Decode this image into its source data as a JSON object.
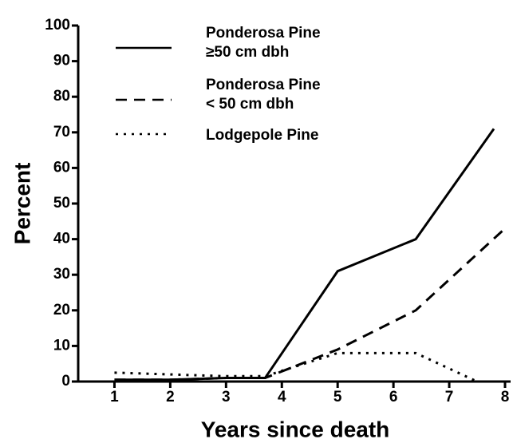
{
  "chart_data": {
    "type": "line",
    "x_label": "Years since death",
    "y_label": "Percent",
    "xlim": [
      0.35,
      8.1
    ],
    "xticks": [
      1,
      2,
      3,
      4,
      5,
      6,
      7,
      8
    ],
    "ylim": [
      0,
      100
    ],
    "yticks": [
      0,
      10,
      20,
      30,
      40,
      50,
      60,
      70,
      80,
      90,
      100
    ],
    "series": [
      {
        "name": "Ponderosa Pine\n≥50 cm dbh",
        "color": "#000",
        "style": "solid",
        "x": [
          1,
          2,
          3,
          3.7,
          5,
          6.4,
          7.8
        ],
        "values": [
          0.5,
          0.5,
          1,
          1,
          31,
          40,
          71
        ]
      },
      {
        "name": "Ponderosa Pine\n< 50 cm dbh",
        "color": "#000",
        "style": "dashed",
        "x": [
          1,
          2,
          3,
          3.7,
          5,
          6.4,
          8
        ],
        "values": [
          0.5,
          0.5,
          1,
          1,
          9,
          20,
          43
        ]
      },
      {
        "name": "Lodgepole Pine",
        "color": "#000",
        "style": "dotted",
        "x": [
          1,
          2,
          3,
          3.7,
          5,
          6.4,
          7.5
        ],
        "values": [
          2.5,
          2,
          1.5,
          1.5,
          8,
          8,
          0
        ]
      }
    ]
  }
}
